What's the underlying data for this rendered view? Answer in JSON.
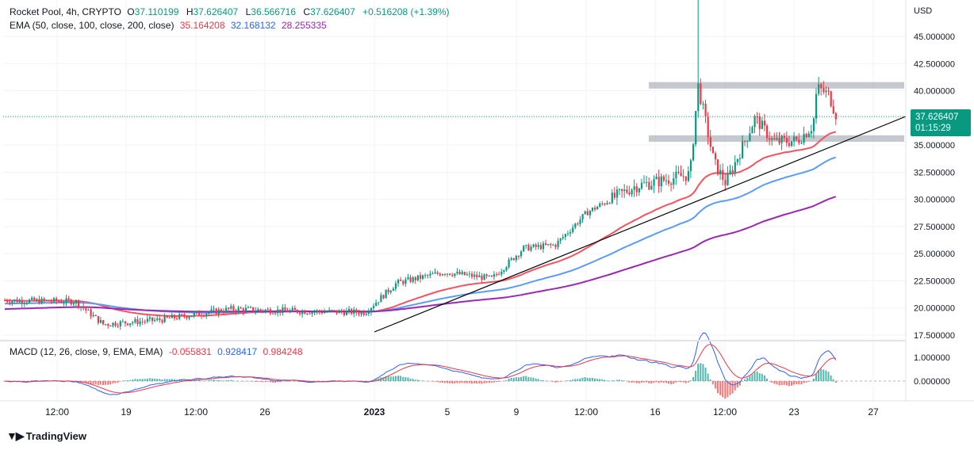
{
  "header": {
    "symbol": "Rocket Pool, 4h, CRYPTO",
    "o_label": "O",
    "o_value": "37.110199",
    "h_label": "H",
    "h_value": "37.626407",
    "l_label": "L",
    "l_value": "36.566716",
    "c_label": "C",
    "c_value": "37.626407",
    "change": "+0.516208 (+1.39%)",
    "ema_label": "EMA (50, close, 100, close, 200, close)",
    "ema50_value": "35.164208",
    "ema100_value": "32.168132",
    "ema200_value": "28.255335"
  },
  "macd_header": {
    "label": "MACD (12, 26, close, 9, EMA, EMA)",
    "hist_value": "-0.055831",
    "macd_value": "0.928417",
    "signal_value": "0.984248"
  },
  "price_axis": {
    "currency": "USD",
    "ticks": [
      "45.000000",
      "42.500000",
      "40.000000",
      "37.500000",
      "35.000000",
      "32.500000",
      "30.000000",
      "27.500000",
      "25.000000",
      "22.500000",
      "20.000000",
      "17.500000"
    ],
    "last_price": "37.626407",
    "countdown": "01:15:29"
  },
  "macd_axis": {
    "ticks": [
      "1.000000",
      "0.000000"
    ]
  },
  "time_axis": {
    "labels": [
      "12:00",
      "19",
      "12:00",
      "26",
      "2023",
      "5",
      "9",
      "12:00",
      "16",
      "12:00",
      "23",
      "27"
    ]
  },
  "footer": {
    "brand": "TradingView"
  },
  "colors": {
    "up": "#089981",
    "down": "#f23645",
    "ema50": "#f7525f",
    "ema100": "#5b9cf6",
    "ema200": "#9c27b0",
    "macd": "#2962ff",
    "signal": "#f23645",
    "zone": "#b2b5be",
    "trendline": "#000000"
  },
  "chart_data": [
    {
      "type": "candlestick",
      "title": "Rocket Pool, 4h, CRYPTO",
      "ylabel": "USD",
      "ylim": [
        17.5,
        46
      ],
      "x_ticks": [
        "12:00",
        "19",
        "12:00",
        "26",
        "2023",
        "5",
        "9",
        "12:00",
        "16",
        "12:00",
        "23",
        "27"
      ],
      "key_points": [
        {
          "x": "start",
          "close": 20.7
        },
        {
          "x": "19",
          "close": 18.5
        },
        {
          "x": "26",
          "close": 19.9
        },
        {
          "x": "2023",
          "close": 19.6
        },
        {
          "x": "5",
          "close": 23.3
        },
        {
          "x": "9",
          "close": 25.5
        },
        {
          "x": "12:00",
          "close": 28.8
        },
        {
          "x": "16",
          "close": 31.5
        },
        {
          "x": "peak",
          "high": 48.0,
          "close": 40.5
        },
        {
          "x": "12:00",
          "close": 32.5
        },
        {
          "x": "23",
          "close": 35.3
        },
        {
          "x": "last",
          "close": 37.626407
        }
      ],
      "series": [
        {
          "name": "EMA 50",
          "last": 35.164208
        },
        {
          "name": "EMA 100",
          "last": 32.168132
        },
        {
          "name": "EMA 200",
          "last": 28.255335
        }
      ],
      "zones": [
        [
          40.2,
          40.8
        ],
        [
          35.3,
          35.9
        ]
      ],
      "trendline": [
        [
          19.3,
          17.8
        ],
        [
          37.6,
          37.5
        ]
      ]
    },
    {
      "type": "line",
      "title": "MACD (12, 26, close, 9, EMA, EMA)",
      "ylim": [
        -0.75,
        1.7
      ],
      "series": [
        {
          "name": "MACD",
          "last": 0.928417
        },
        {
          "name": "Signal",
          "last": 0.984248
        },
        {
          "name": "Histogram",
          "last": -0.055831
        }
      ]
    }
  ]
}
